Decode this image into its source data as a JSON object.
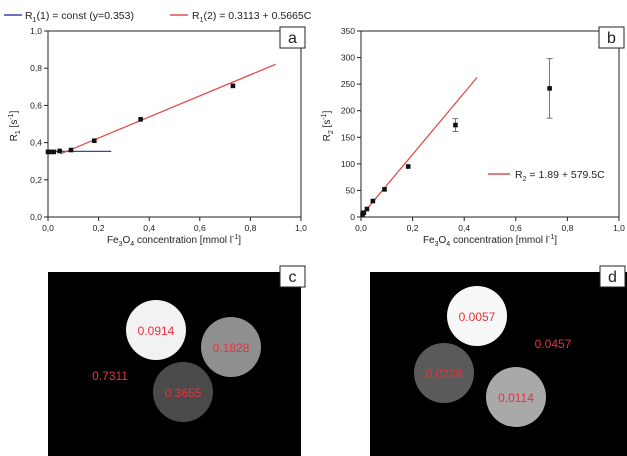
{
  "chart_data": [
    {
      "panel": "a",
      "type": "scatter",
      "xlabel": {
        "base": "Fe",
        "sub1": "3",
        "mid": "O",
        "sub2": "4",
        "rest": " concentration [mmol l",
        "sup": "-1",
        "end": "]"
      },
      "ylabel": {
        "base": "R",
        "sub": "1",
        "mid": " [s",
        "sup": "-1",
        "end": "]"
      },
      "xlim": [
        0,
        1.0
      ],
      "ylim": [
        0,
        1.0
      ],
      "xticks": [
        "0,0",
        "0,2",
        "0,4",
        "0,6",
        "0,8",
        "1,0"
      ],
      "yticks": [
        "0,0",
        "0,2",
        "0,4",
        "0,6",
        "0,8",
        "1,0"
      ],
      "xtick_values": [
        0,
        0.2,
        0.4,
        0.6,
        0.8,
        1.0
      ],
      "ytick_values": [
        0,
        0.2,
        0.4,
        0.6,
        0.8,
        1.0
      ],
      "points": [
        {
          "x": 0.0,
          "y": 0.35
        },
        {
          "x": 0.011,
          "y": 0.35
        },
        {
          "x": 0.023,
          "y": 0.35
        },
        {
          "x": 0.046,
          "y": 0.355
        },
        {
          "x": 0.091,
          "y": 0.36
        },
        {
          "x": 0.183,
          "y": 0.41
        },
        {
          "x": 0.366,
          "y": 0.525
        },
        {
          "x": 0.731,
          "y": 0.705
        }
      ],
      "lines": [
        {
          "name_parts": {
            "a": "R",
            "sub": "1",
            "b": "(1) = const (y=0.353)"
          },
          "color": "#3a43a8",
          "x": [
            0.0,
            0.25
          ],
          "y": [
            0.353,
            0.353
          ]
        },
        {
          "name_parts": {
            "a": "R",
            "sub": "1",
            "b": "(2) = 0.3113 + 0.5665C"
          },
          "color": "#e0504f",
          "x": [
            0.05,
            0.9
          ],
          "y": [
            0.3396,
            0.8212
          ]
        }
      ]
    },
    {
      "panel": "b",
      "type": "scatter",
      "xlabel": {
        "base": "Fe",
        "sub1": "3",
        "mid": "O",
        "sub2": "4",
        "rest": " concentration [mmol l",
        "sup": "-1",
        "end": "]"
      },
      "ylabel": {
        "base": "R",
        "sub": "2",
        "mid": " [s",
        "sup": "-1",
        "end": "]"
      },
      "xlim": [
        0,
        1.0
      ],
      "ylim": [
        0,
        350
      ],
      "xticks": [
        "0,0",
        "0,2",
        "0,4",
        "0,6",
        "0,8",
        "1,0"
      ],
      "yticks": [
        "0",
        "50",
        "100",
        "150",
        "200",
        "250",
        "300",
        "350"
      ],
      "xtick_values": [
        0,
        0.2,
        0.4,
        0.6,
        0.8,
        1.0
      ],
      "ytick_values": [
        0,
        50,
        100,
        150,
        200,
        250,
        300,
        350
      ],
      "points": [
        {
          "x": 0.006,
          "y": 5
        },
        {
          "x": 0.011,
          "y": 8
        },
        {
          "x": 0.023,
          "y": 15
        },
        {
          "x": 0.046,
          "y": 30
        },
        {
          "x": 0.091,
          "y": 52
        },
        {
          "x": 0.183,
          "y": 95
        },
        {
          "x": 0.366,
          "y": 173,
          "err": 12
        },
        {
          "x": 0.731,
          "y": 242,
          "err": 56
        }
      ],
      "lines": [
        {
          "name_parts": {
            "a": "R",
            "sub": "2",
            "b": " = 1.89 + 579.5C"
          },
          "color": "#e0504f",
          "x": [
            0.0,
            0.45
          ],
          "y": [
            1.89,
            262.7
          ]
        }
      ]
    }
  ],
  "panels": {
    "a": {
      "letter": "a"
    },
    "b": {
      "letter": "b"
    },
    "c": {
      "letter": "c"
    },
    "d": {
      "letter": "d"
    }
  },
  "mri_c": {
    "samples": [
      {
        "label": "0.0914",
        "gray": "#f2f2f2"
      },
      {
        "label": "0.1828",
        "gray": "#8f8f8f"
      },
      {
        "label": "0.3655",
        "gray": "#4a4a4a"
      },
      {
        "label": "0.7311",
        "gray": null
      }
    ]
  },
  "mri_d": {
    "samples": [
      {
        "label": "0.0057",
        "gray": "#f7f7f7"
      },
      {
        "label": "0.0228",
        "gray": "#5a5a5a"
      },
      {
        "label": "0.0114",
        "gray": "#a9a9a9"
      },
      {
        "label": "0.0457",
        "gray": null
      }
    ]
  },
  "colors": {
    "value_label": "#e8323c",
    "background_mri": "#000000",
    "marker": "#111111"
  }
}
